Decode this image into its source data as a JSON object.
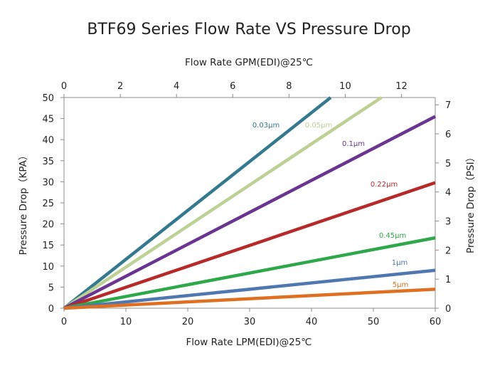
{
  "chart_data": {
    "type": "line",
    "title": "BTF69 Series Flow Rate VS Pressure Drop",
    "xlabel": "Flow Rate LPM(EDI)@25℃",
    "x2label": "Flow Rate GPM(EDI)@25℃",
    "ylabel": "Pressure Drop（KPA）",
    "y2label": "Pressure Drop（PSI）",
    "xlim": [
      0,
      60
    ],
    "x2lim": [
      0,
      13.2
    ],
    "ylim": [
      0,
      50
    ],
    "y2lim": [
      0,
      7.25
    ],
    "xticks": [
      0,
      10,
      20,
      30,
      40,
      50,
      60
    ],
    "x2ticks": [
      0,
      2,
      4,
      6,
      8,
      10,
      12
    ],
    "yticks": [
      0,
      5,
      10,
      15,
      20,
      25,
      30,
      35,
      40,
      45,
      50
    ],
    "y2ticks": [
      0,
      1,
      2,
      3,
      4,
      5,
      6,
      7
    ],
    "grid": false,
    "series": [
      {
        "name": "0.03μm",
        "color": "#35798F",
        "x": [
          0,
          43.1
        ],
        "y": [
          0,
          50
        ]
      },
      {
        "name": "0.05μm",
        "color": "#BDD095",
        "x": [
          0,
          51.3
        ],
        "y": [
          0,
          50
        ]
      },
      {
        "name": "0.1μm",
        "color": "#6A3591",
        "x": [
          0,
          60
        ],
        "y": [
          0,
          45.5
        ]
      },
      {
        "name": "0.22μm",
        "color": "#B72A2A",
        "x": [
          0,
          60
        ],
        "y": [
          0,
          29.8
        ]
      },
      {
        "name": "0.45μm",
        "color": "#2EA84A",
        "x": [
          0,
          60
        ],
        "y": [
          0,
          16.7
        ]
      },
      {
        "name": "1μm",
        "color": "#4F77B0",
        "x": [
          0,
          60
        ],
        "y": [
          0,
          9.0
        ]
      },
      {
        "name": "5μm",
        "color": "#E07021",
        "x": [
          0,
          60
        ],
        "y": [
          0,
          4.5
        ]
      }
    ]
  }
}
